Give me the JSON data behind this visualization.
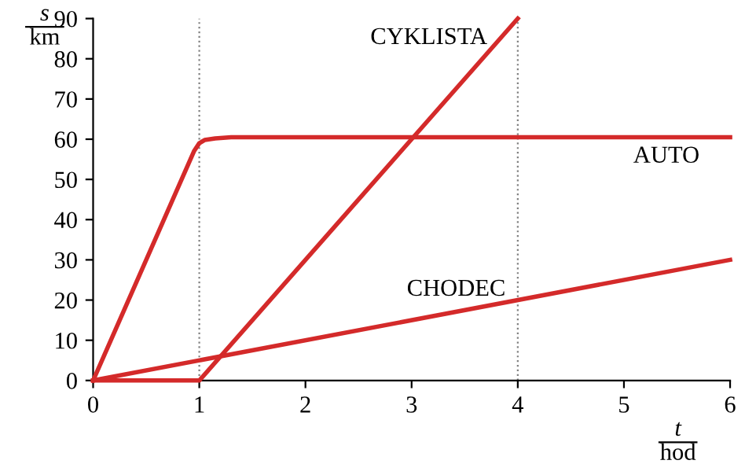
{
  "chart_data": {
    "type": "line",
    "xlabel": "t\nhod",
    "ylabel": "s\nkm",
    "xlim": [
      0,
      6
    ],
    "ylim": [
      0,
      90
    ],
    "xticks": [
      0,
      1,
      2,
      3,
      4,
      5,
      6
    ],
    "yticks": [
      0,
      10,
      20,
      30,
      40,
      50,
      60,
      70,
      80,
      90
    ],
    "grid": false,
    "legend": false,
    "marker": "none",
    "line_style": "solid",
    "series": [
      {
        "name": "AUTO",
        "color": "#d42a2a",
        "x": [
          0,
          0.95,
          1.0,
          1.05,
          1.15,
          1.3,
          6
        ],
        "values": [
          0,
          57,
          59,
          59.8,
          60.2,
          60.5,
          60.5
        ]
      },
      {
        "name": "CYKLISTA",
        "color": "#d42a2a",
        "x": [
          0,
          1,
          4
        ],
        "values": [
          0,
          0,
          90
        ]
      },
      {
        "name": "CHODEC",
        "color": "#d42a2a",
        "x": [
          0,
          6
        ],
        "values": [
          0,
          30
        ]
      }
    ],
    "ref_lines": [
      {
        "axis": "x",
        "value": 1,
        "color": "#808080",
        "line_style": "dotted"
      },
      {
        "axis": "x",
        "value": 4,
        "color": "#808080",
        "line_style": "dotted"
      }
    ]
  }
}
